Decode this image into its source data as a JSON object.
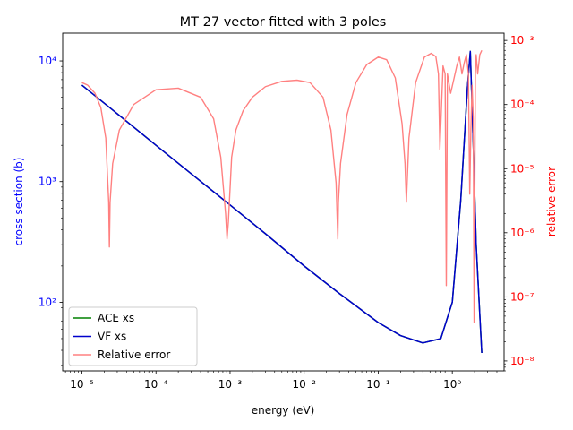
{
  "chart_data": {
    "type": "line",
    "title": "MT 27 vector fitted with 3 poles",
    "xlabel": "energy (eV)",
    "ylabel": "cross section (b)",
    "y2label": "relative error",
    "xscale": "log",
    "yscale": "log",
    "y2scale": "log",
    "xlim": [
      5.5e-06,
      5.0
    ],
    "ylim": [
      27,
      17000
    ],
    "y2lim": [
      7e-09,
      0.0013
    ],
    "x_ticks": [
      {
        "value": 1e-05,
        "label": "10⁻⁵"
      },
      {
        "value": 0.0001,
        "label": "10⁻⁴"
      },
      {
        "value": 0.001,
        "label": "10⁻³"
      },
      {
        "value": 0.01,
        "label": "10⁻²"
      },
      {
        "value": 0.1,
        "label": "10⁻¹"
      },
      {
        "value": 1,
        "label": "10⁰"
      }
    ],
    "y_ticks": [
      {
        "value": 100,
        "label": "10²"
      },
      {
        "value": 1000,
        "label": "10³"
      },
      {
        "value": 10000,
        "label": "10⁴"
      }
    ],
    "y2_ticks": [
      {
        "value": 1e-08,
        "label": "10⁻⁸"
      },
      {
        "value": 1e-07,
        "label": "10⁻⁷"
      },
      {
        "value": 1e-06,
        "label": "10⁻⁶"
      },
      {
        "value": 1e-05,
        "label": "10⁻⁵"
      },
      {
        "value": 0.0001,
        "label": "10⁻⁴"
      },
      {
        "value": 0.001,
        "label": "10⁻³"
      }
    ],
    "legend_position": "lower-left",
    "colors": {
      "left_axis": "#0000ff",
      "right_axis": "#ff0000"
    },
    "series": [
      {
        "name": "ACE xs",
        "color": "#008000",
        "axis": "left",
        "x": [
          1e-05,
          3e-05,
          0.0001,
          0.0003,
          0.001,
          0.003,
          0.01,
          0.03,
          0.1,
          0.2,
          0.4,
          0.7,
          1.0,
          1.3,
          1.6,
          1.75,
          1.9,
          2.1,
          2.5
        ],
        "y": [
          6300,
          3650,
          2000,
          1160,
          640,
          370,
          200,
          118,
          68,
          53,
          46,
          50,
          100,
          700,
          6000,
          12000,
          2500,
          300,
          38
        ]
      },
      {
        "name": "VF xs",
        "color": "#0000cc",
        "axis": "left",
        "x": [
          1e-05,
          3e-05,
          0.0001,
          0.0003,
          0.001,
          0.003,
          0.01,
          0.03,
          0.1,
          0.2,
          0.4,
          0.7,
          1.0,
          1.3,
          1.6,
          1.75,
          1.9,
          2.1,
          2.5
        ],
        "y": [
          6300,
          3650,
          2000,
          1160,
          640,
          370,
          200,
          118,
          68,
          53,
          46,
          50,
          100,
          700,
          6000,
          12000,
          2500,
          300,
          38
        ]
      },
      {
        "name": "Relative error",
        "color": "#ff8080",
        "axis": "right",
        "x": [
          1e-05,
          1.2e-05,
          1.5e-05,
          1.8e-05,
          2.1e-05,
          2.3e-05,
          2.35e-05,
          2.4e-05,
          2.6e-05,
          3.2e-05,
          5e-05,
          0.0001,
          0.0002,
          0.0004,
          0.0006,
          0.00075,
          0.00087,
          0.00091,
          0.00095,
          0.00105,
          0.0012,
          0.0015,
          0.002,
          0.003,
          0.005,
          0.008,
          0.012,
          0.018,
          0.023,
          0.027,
          0.0285,
          0.029,
          0.031,
          0.038,
          0.05,
          0.07,
          0.1,
          0.13,
          0.17,
          0.21,
          0.23,
          0.24,
          0.26,
          0.32,
          0.42,
          0.52,
          0.6,
          0.65,
          0.68,
          0.75,
          0.8,
          0.83,
          0.86,
          0.95,
          1.05,
          1.15,
          1.25,
          1.35,
          1.45,
          1.55,
          1.65,
          1.72,
          1.78,
          1.85,
          1.92,
          1.97,
          2.0,
          2.05,
          2.1,
          2.2,
          2.35,
          2.5
        ],
        "y": [
          0.00022,
          0.0002,
          0.00015,
          9e-05,
          3e-05,
          3e-06,
          6e-07,
          3e-06,
          1.2e-05,
          4e-05,
          0.0001,
          0.00017,
          0.00018,
          0.00013,
          6e-05,
          1.5e-05,
          2e-06,
          8e-07,
          1.5e-06,
          1.5e-05,
          4e-05,
          8e-05,
          0.00013,
          0.00019,
          0.00023,
          0.00024,
          0.00022,
          0.00013,
          4e-05,
          6e-06,
          8e-07,
          3e-06,
          1.2e-05,
          7e-05,
          0.00022,
          0.00042,
          0.00055,
          0.0005,
          0.00026,
          5e-05,
          1.2e-05,
          3e-06,
          3e-05,
          0.00022,
          0.00055,
          0.00063,
          0.00056,
          0.0003,
          2e-05,
          0.0004,
          0.0003,
          1.5e-07,
          0.0003,
          0.00015,
          0.00025,
          0.0004,
          0.00055,
          0.0003,
          0.00045,
          0.0006,
          0.0003,
          4e-06,
          4e-05,
          0.0002,
          6e-05,
          4e-08,
          1e-06,
          0.0003,
          0.0006,
          0.0003,
          0.0006,
          0.0007
        ]
      }
    ]
  }
}
